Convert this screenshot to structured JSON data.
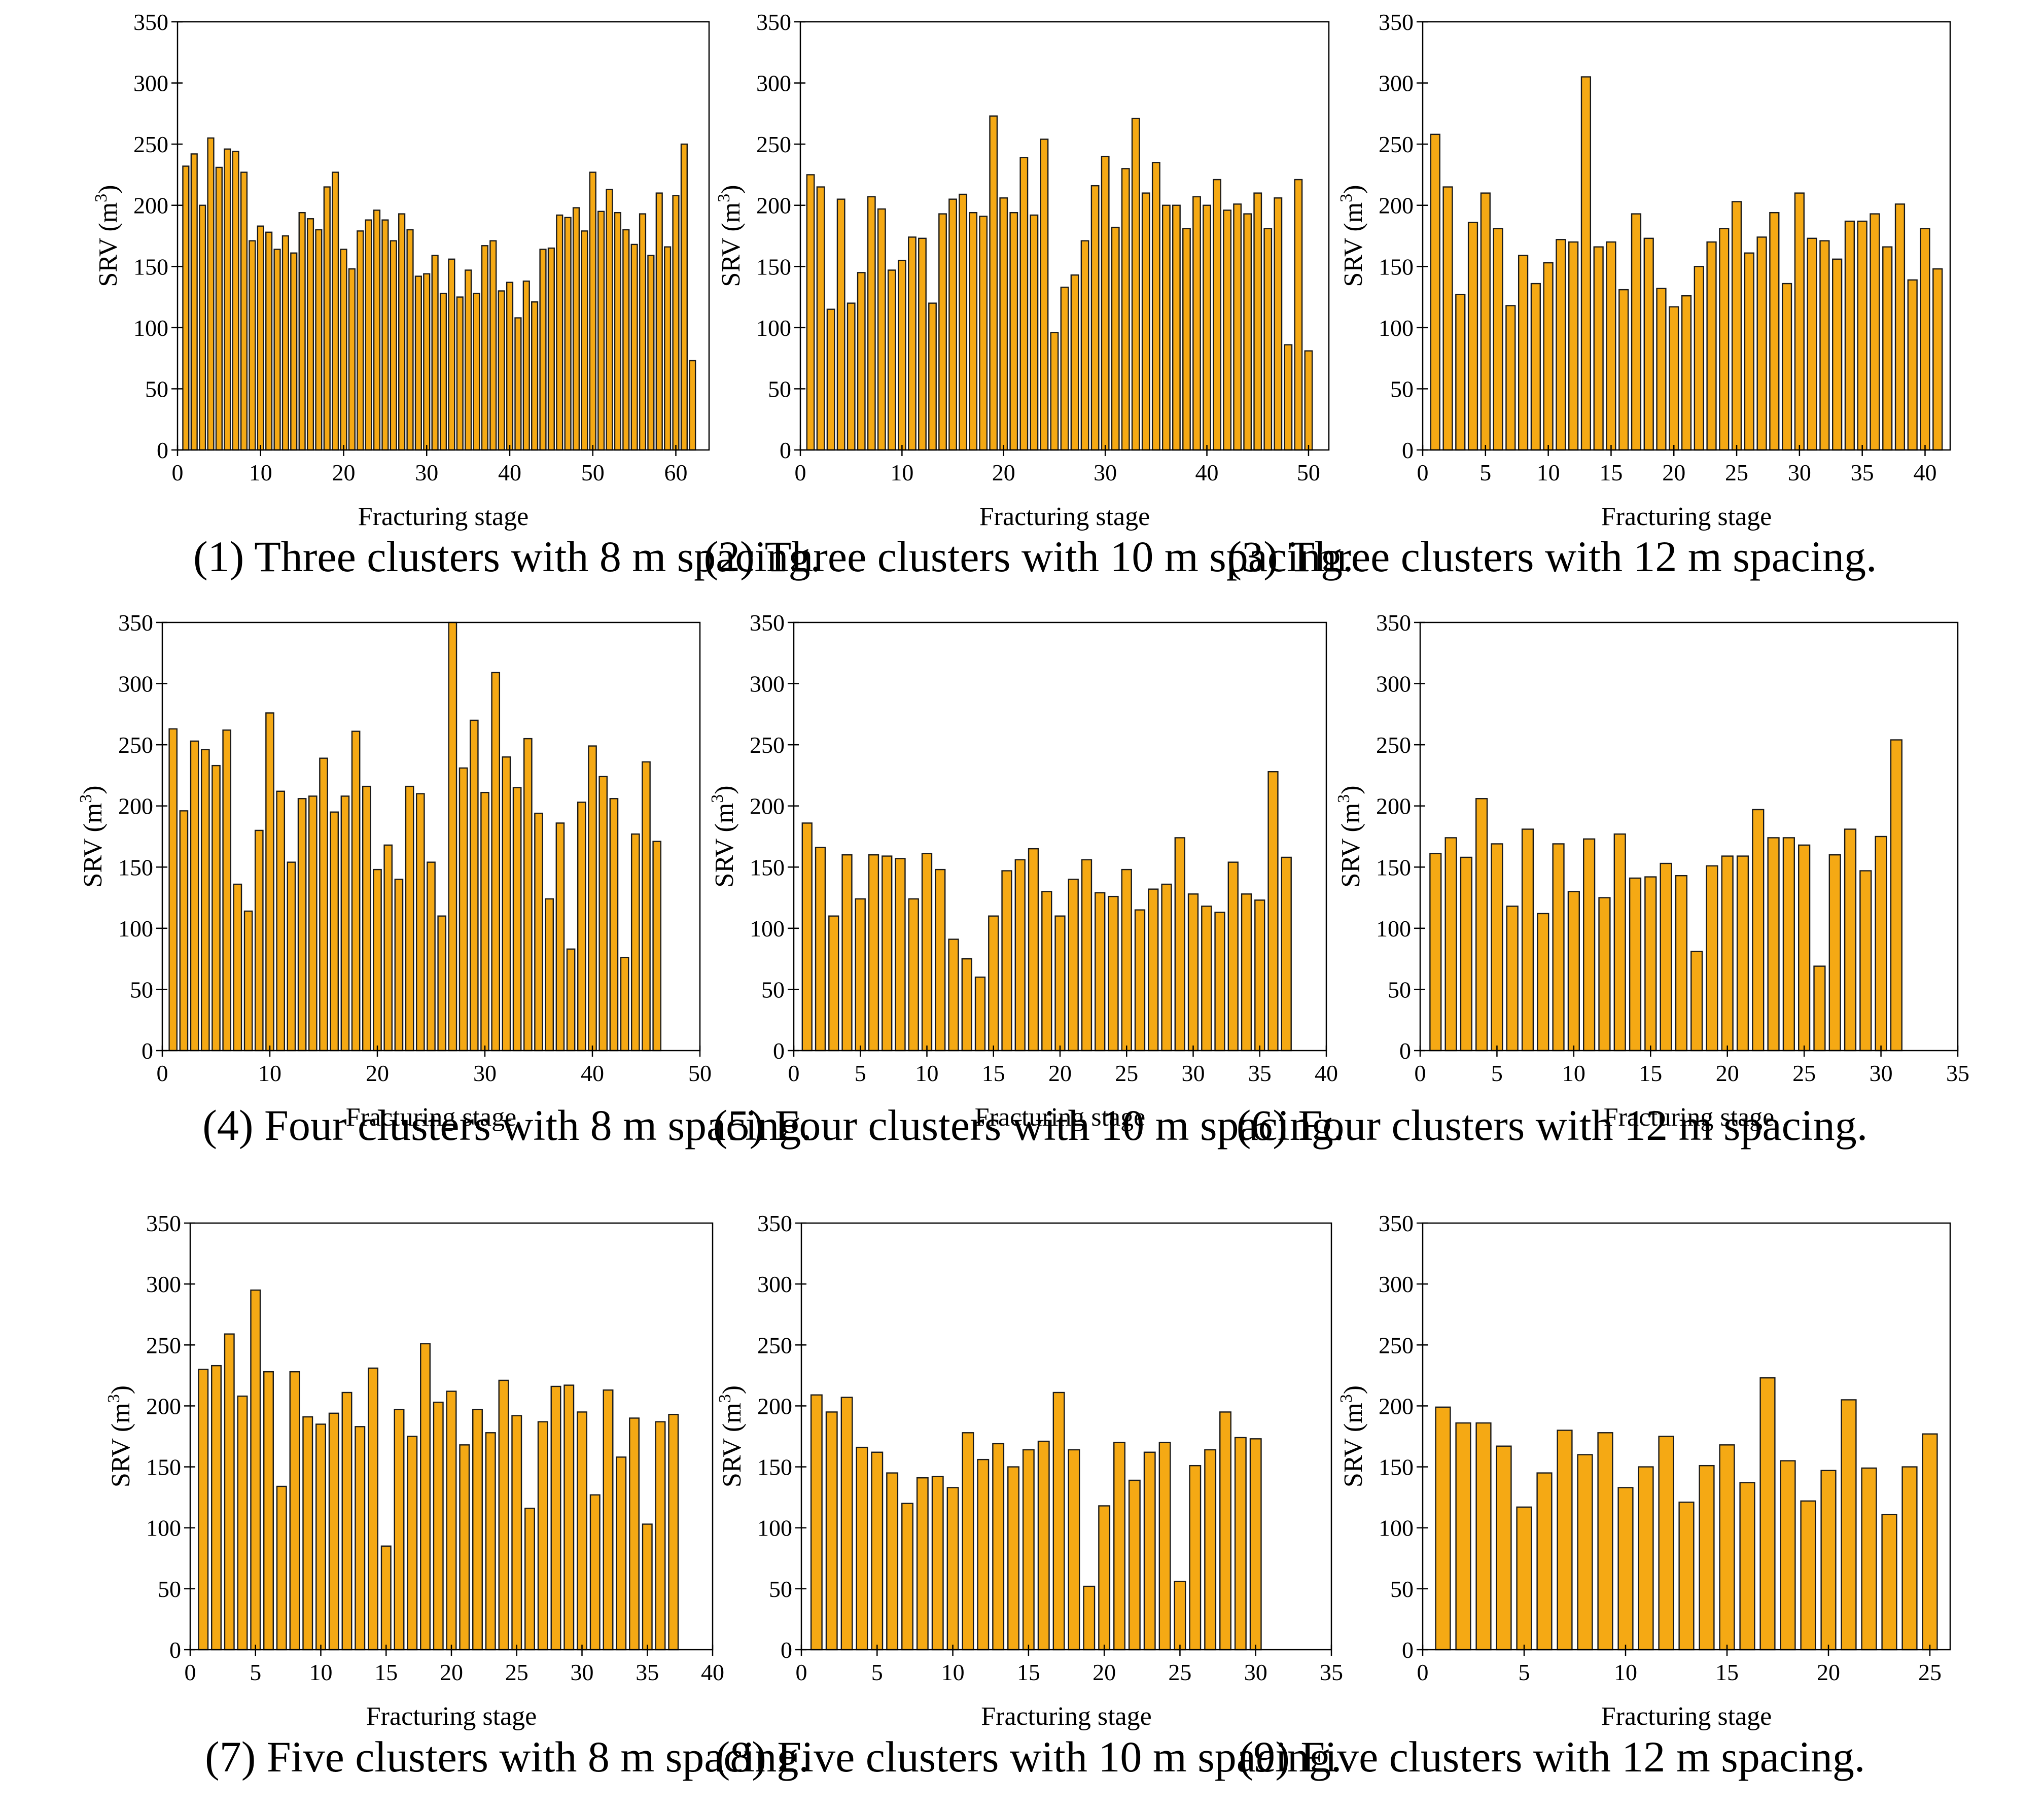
{
  "bar_color": "#F5A914",
  "bar_edge": "#1a1a1a",
  "chart_data": [
    {
      "type": "bar",
      "caption": "(1) Three clusters with 8 m spacing.",
      "xlabel": "Fracturing stage",
      "ylabel": "SRV (m",
      "ylabel_sup": "3",
      "ylabel_close": ")",
      "xlim": [
        0,
        64
      ],
      "ylim": [
        0,
        350
      ],
      "xticks": [
        "0",
        "10",
        "20",
        "30",
        "40",
        "50",
        "60"
      ],
      "yticks": [
        "0",
        "50",
        "100",
        "150",
        "200",
        "250",
        "300",
        "350"
      ],
      "values": [
        232,
        242,
        200,
        255,
        231,
        246,
        244,
        227,
        171,
        183,
        178,
        164,
        175,
        161,
        194,
        189,
        180,
        215,
        227,
        164,
        148,
        179,
        188,
        196,
        188,
        171,
        193,
        180,
        142,
        144,
        159,
        128,
        156,
        125,
        147,
        128,
        167,
        171,
        130,
        137,
        108,
        138,
        121,
        164,
        165,
        192,
        190,
        198,
        179,
        227,
        195,
        213,
        194,
        180,
        168,
        193,
        159,
        210,
        166,
        208,
        250,
        73
      ]
    },
    {
      "type": "bar",
      "caption": "(2) Three clusters with 10 m spacing.",
      "xlabel": "Fracturing stage",
      "ylabel": "SRV (m",
      "ylabel_sup": "3",
      "ylabel_close": ")",
      "xlim": [
        0,
        52
      ],
      "ylim": [
        0,
        350
      ],
      "xticks": [
        "0",
        "10",
        "20",
        "30",
        "40",
        "50"
      ],
      "yticks": [
        "0",
        "50",
        "100",
        "150",
        "200",
        "250",
        "300",
        "350"
      ],
      "values": [
        225,
        215,
        115,
        205,
        120,
        145,
        207,
        197,
        147,
        155,
        174,
        173,
        120,
        193,
        205,
        209,
        194,
        191,
        273,
        206,
        194,
        239,
        192,
        254,
        96,
        133,
        143,
        171,
        216,
        240,
        182,
        230,
        271,
        210,
        235,
        200,
        200,
        181,
        207,
        200,
        221,
        196,
        201,
        193,
        210,
        181,
        206,
        86,
        221,
        81
      ]
    },
    {
      "type": "bar",
      "caption": "(3) Three clusters with 12 m spacing.",
      "xlabel": "Fracturing stage",
      "ylabel": "SRV (m",
      "ylabel_sup": "3",
      "ylabel_close": ")",
      "xlim": [
        0,
        42
      ],
      "ylim": [
        0,
        350
      ],
      "xticks": [
        "0",
        "5",
        "10",
        "15",
        "20",
        "25",
        "30",
        "35",
        "40"
      ],
      "yticks": [
        "0",
        "50",
        "100",
        "150",
        "200",
        "250",
        "300",
        "350"
      ],
      "values": [
        258,
        215,
        127,
        186,
        210,
        181,
        118,
        159,
        136,
        153,
        172,
        170,
        305,
        166,
        170,
        131,
        193,
        173,
        132,
        117,
        126,
        150,
        170,
        181,
        203,
        161,
        174,
        194,
        136,
        210,
        173,
        171,
        156,
        187,
        187,
        193,
        166,
        201,
        139,
        181,
        148
      ]
    },
    {
      "type": "bar",
      "caption": "(4) Four clusters with 8 m spacing.",
      "xlabel": "Fracturing stage",
      "ylabel": "SRV (m",
      "ylabel_sup": "3",
      "ylabel_close": ")",
      "xlim": [
        0,
        50
      ],
      "ylim": [
        0,
        350
      ],
      "xticks": [
        "0",
        "10",
        "20",
        "30",
        "40",
        "50"
      ],
      "yticks": [
        "0",
        "50",
        "100",
        "150",
        "200",
        "250",
        "300",
        "350"
      ],
      "values": [
        263,
        196,
        253,
        246,
        233,
        262,
        136,
        114,
        180,
        276,
        212,
        154,
        206,
        208,
        239,
        195,
        208,
        261,
        216,
        148,
        168,
        140,
        216,
        210,
        154,
        110,
        350,
        231,
        270,
        211,
        309,
        240,
        215,
        255,
        194,
        124,
        186,
        83,
        203,
        249,
        224,
        206,
        76,
        177,
        236,
        171
      ]
    },
    {
      "type": "bar",
      "caption": "(5) Four clusters with 10 m spacing.",
      "xlabel": "Fracturing stage",
      "ylabel": "SRV (m",
      "ylabel_sup": "3",
      "ylabel_close": ")",
      "xlim": [
        0,
        40
      ],
      "ylim": [
        0,
        350
      ],
      "xticks": [
        "0",
        "5",
        "10",
        "15",
        "20",
        "25",
        "30",
        "35",
        "40"
      ],
      "yticks": [
        "0",
        "50",
        "100",
        "150",
        "200",
        "250",
        "300",
        "350"
      ],
      "values": [
        186,
        166,
        110,
        160,
        124,
        160,
        159,
        157,
        124,
        161,
        148,
        91,
        75,
        60,
        110,
        147,
        156,
        165,
        130,
        110,
        140,
        156,
        129,
        126,
        148,
        115,
        132,
        136,
        174,
        128,
        118,
        113,
        154,
        128,
        123,
        228,
        158
      ]
    },
    {
      "type": "bar",
      "caption": "(6) Four clusters with 12 m spacing.",
      "xlabel": "Fracturing stage",
      "ylabel": "SRV (m",
      "ylabel_sup": "3",
      "ylabel_close": ")",
      "xlim": [
        0,
        35
      ],
      "ylim": [
        0,
        350
      ],
      "xticks": [
        "0",
        "5",
        "10",
        "15",
        "20",
        "25",
        "30",
        "35"
      ],
      "yticks": [
        "0",
        "50",
        "100",
        "150",
        "200",
        "250",
        "300",
        "350"
      ],
      "values": [
        161,
        174,
        158,
        206,
        169,
        118,
        181,
        112,
        169,
        130,
        173,
        125,
        177,
        141,
        142,
        153,
        143,
        81,
        151,
        159,
        159,
        197,
        174,
        174,
        168,
        69,
        160,
        181,
        147,
        175,
        254
      ]
    },
    {
      "type": "bar",
      "caption": "(7) Five clusters with 8 m spacing.",
      "xlabel": "Fracturing stage",
      "ylabel": "SRV (m",
      "ylabel_sup": "3",
      "ylabel_close": ")",
      "xlim": [
        0,
        40
      ],
      "ylim": [
        0,
        350
      ],
      "xticks": [
        "0",
        "5",
        "10",
        "15",
        "20",
        "25",
        "30",
        "35",
        "40"
      ],
      "yticks": [
        "0",
        "50",
        "100",
        "150",
        "200",
        "250",
        "300",
        "350"
      ],
      "values": [
        230,
        233,
        259,
        208,
        295,
        228,
        134,
        228,
        191,
        185,
        194,
        211,
        183,
        231,
        85,
        197,
        175,
        251,
        203,
        212,
        168,
        197,
        178,
        221,
        192,
        116,
        187,
        216,
        217,
        195,
        127,
        213,
        158,
        190,
        103,
        187,
        193
      ]
    },
    {
      "type": "bar",
      "caption": "(8) Five clusters with 10 m spacing.",
      "xlabel": "Fracturing stage",
      "ylabel": "SRV (m",
      "ylabel_sup": "3",
      "ylabel_close": ")",
      "xlim": [
        0,
        35
      ],
      "ylim": [
        0,
        350
      ],
      "xticks": [
        "0",
        "5",
        "10",
        "15",
        "20",
        "25",
        "30",
        "35"
      ],
      "yticks": [
        "0",
        "50",
        "100",
        "150",
        "200",
        "250",
        "300",
        "350"
      ],
      "values": [
        209,
        195,
        207,
        166,
        162,
        145,
        120,
        141,
        142,
        133,
        178,
        156,
        169,
        150,
        164,
        171,
        211,
        164,
        52,
        118,
        170,
        139,
        162,
        170,
        56,
        151,
        164,
        195,
        174,
        173
      ]
    },
    {
      "type": "bar",
      "caption": "(9) Five clusters with 12 m spacing.",
      "xlabel": "Fracturing stage",
      "ylabel": "SRV (m",
      "ylabel_sup": "3",
      "ylabel_close": ")",
      "xlim": [
        0,
        26
      ],
      "ylim": [
        0,
        350
      ],
      "xticks": [
        "0",
        "5",
        "10",
        "15",
        "20",
        "25"
      ],
      "yticks": [
        "0",
        "50",
        "100",
        "150",
        "200",
        "250",
        "300",
        "350"
      ],
      "values": [
        199,
        186,
        186,
        167,
        117,
        145,
        180,
        160,
        178,
        133,
        150,
        175,
        121,
        151,
        168,
        137,
        223,
        155,
        122,
        147,
        205,
        149,
        111,
        150,
        177
      ]
    }
  ]
}
